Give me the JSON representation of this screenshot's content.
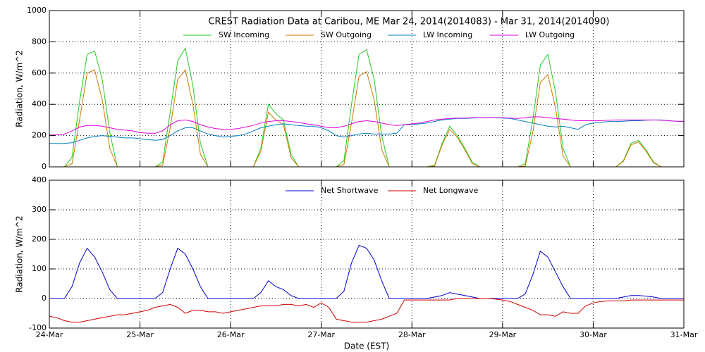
{
  "chart_data": [
    {
      "type": "line",
      "title": "CREST Radiation Data at Caribou, ME   Mar 24, 2014(2014083) - Mar 31, 2014(2014090)",
      "ylabel": "Radiation, W/m^2",
      "x": [
        0,
        2,
        4,
        6,
        8,
        10,
        12,
        14,
        16,
        18,
        20,
        22,
        24,
        26,
        28,
        30,
        32,
        34,
        36,
        38,
        40,
        42,
        44,
        46,
        48,
        50,
        52,
        54,
        56,
        58,
        60,
        62,
        64,
        66,
        68,
        70,
        72,
        74,
        76,
        78,
        80,
        82,
        84,
        86,
        88,
        90,
        92,
        94,
        96,
        98,
        100,
        102,
        104,
        106,
        108,
        110,
        112,
        114,
        116,
        118,
        120,
        122,
        124,
        126,
        128,
        130,
        132,
        134,
        136,
        138,
        140,
        142,
        144,
        146,
        148,
        150,
        152,
        154,
        156,
        158,
        160,
        162,
        164,
        166,
        168
      ],
      "xlim": [
        0,
        168
      ],
      "xticks": [
        0,
        24,
        48,
        72,
        96,
        120,
        144,
        168
      ],
      "ylim": [
        0,
        1000
      ],
      "yticks": [
        0,
        200,
        400,
        600,
        800,
        1000
      ],
      "grid": true,
      "series": [
        {
          "name": "SW Incoming",
          "color": "#22cc22",
          "values": [
            0,
            0,
            0,
            60,
            420,
            720,
            740,
            560,
            220,
            0,
            0,
            0,
            0,
            0,
            0,
            30,
            350,
            680,
            760,
            520,
            150,
            0,
            0,
            0,
            0,
            0,
            0,
            0,
            120,
            400,
            340,
            300,
            80,
            0,
            0,
            0,
            0,
            0,
            0,
            40,
            400,
            720,
            750,
            560,
            200,
            0,
            0,
            0,
            0,
            0,
            0,
            10,
            150,
            260,
            200,
            120,
            30,
            0,
            0,
            0,
            0,
            0,
            0,
            20,
            300,
            650,
            720,
            480,
            120,
            0,
            0,
            0,
            0,
            0,
            0,
            0,
            40,
            150,
            170,
            110,
            30,
            0,
            0,
            0,
            0
          ]
        },
        {
          "name": "SW Outgoing",
          "color": "#cc7a00",
          "values": [
            0,
            0,
            0,
            20,
            300,
            600,
            620,
            430,
            120,
            0,
            0,
            0,
            0,
            0,
            0,
            10,
            250,
            560,
            620,
            400,
            80,
            0,
            0,
            0,
            0,
            0,
            0,
            0,
            100,
            350,
            300,
            270,
            60,
            0,
            0,
            0,
            0,
            0,
            0,
            15,
            280,
            580,
            610,
            430,
            110,
            0,
            0,
            0,
            0,
            0,
            0,
            5,
            140,
            240,
            190,
            110,
            20,
            0,
            0,
            0,
            0,
            0,
            0,
            5,
            220,
            540,
            590,
            380,
            70,
            0,
            0,
            0,
            0,
            0,
            0,
            0,
            35,
            140,
            160,
            100,
            25,
            0,
            0,
            0,
            0
          ]
        },
        {
          "name": "LW Incoming",
          "color": "#0080c0",
          "values": [
            150,
            150,
            150,
            155,
            170,
            185,
            195,
            200,
            195,
            190,
            185,
            185,
            180,
            175,
            170,
            175,
            200,
            230,
            250,
            250,
            230,
            210,
            200,
            190,
            195,
            200,
            210,
            230,
            250,
            260,
            270,
            275,
            270,
            265,
            260,
            260,
            250,
            230,
            200,
            190,
            200,
            210,
            215,
            210,
            210,
            210,
            215,
            270,
            270,
            275,
            280,
            290,
            300,
            305,
            310,
            310,
            312,
            315,
            315,
            315,
            312,
            310,
            300,
            290,
            280,
            270,
            260,
            255,
            260,
            250,
            240,
            270,
            280,
            285,
            290,
            290,
            292,
            295,
            295,
            298,
            300,
            300,
            295,
            292,
            290
          ]
        },
        {
          "name": "LW Outgoing",
          "color": "#e000e0",
          "values": [
            210,
            205,
            210,
            230,
            255,
            265,
            265,
            260,
            250,
            240,
            235,
            230,
            220,
            215,
            215,
            230,
            270,
            295,
            300,
            290,
            270,
            255,
            245,
            240,
            240,
            245,
            255,
            265,
            280,
            290,
            295,
            295,
            290,
            285,
            275,
            270,
            260,
            250,
            250,
            260,
            275,
            290,
            295,
            290,
            280,
            270,
            265,
            270,
            275,
            280,
            290,
            300,
            305,
            310,
            312,
            312,
            315,
            315,
            315,
            315,
            315,
            312,
            310,
            315,
            320,
            320,
            315,
            310,
            305,
            300,
            295,
            295,
            295,
            295,
            298,
            300,
            300,
            300,
            300,
            300,
            300,
            298,
            295,
            292,
            292
          ]
        }
      ]
    },
    {
      "type": "line",
      "xlabel": "Date (EST)",
      "ylabel": "Radiation, W/m^2",
      "x": [
        0,
        2,
        4,
        6,
        8,
        10,
        12,
        14,
        16,
        18,
        20,
        22,
        24,
        26,
        28,
        30,
        32,
        34,
        36,
        38,
        40,
        42,
        44,
        46,
        48,
        50,
        52,
        54,
        56,
        58,
        60,
        62,
        64,
        66,
        68,
        70,
        72,
        74,
        76,
        78,
        80,
        82,
        84,
        86,
        88,
        90,
        92,
        94,
        96,
        98,
        100,
        102,
        104,
        106,
        108,
        110,
        112,
        114,
        116,
        118,
        120,
        122,
        124,
        126,
        128,
        130,
        132,
        134,
        136,
        138,
        140,
        142,
        144,
        146,
        148,
        150,
        152,
        154,
        156,
        158,
        160,
        162,
        164,
        166,
        168
      ],
      "xlim": [
        0,
        168
      ],
      "xticks": [
        {
          "value": 0,
          "label": "24-Mar"
        },
        {
          "value": 24,
          "label": "25-Mar"
        },
        {
          "value": 48,
          "label": "26-Mar"
        },
        {
          "value": 72,
          "label": "27-Mar"
        },
        {
          "value": 96,
          "label": "28-Mar"
        },
        {
          "value": 120,
          "label": "29-Mar"
        },
        {
          "value": 144,
          "label": "30-Mar"
        },
        {
          "value": 168,
          "label": "31-Mar"
        }
      ],
      "ylim": [
        -100,
        400
      ],
      "yticks": [
        -100,
        0,
        100,
        200,
        300,
        400
      ],
      "grid": true,
      "series": [
        {
          "name": "Net Shortwave",
          "color": "#0000cc",
          "values": [
            0,
            0,
            0,
            40,
            120,
            170,
            140,
            90,
            30,
            0,
            0,
            0,
            0,
            0,
            0,
            20,
            100,
            170,
            150,
            100,
            40,
            0,
            0,
            0,
            0,
            0,
            0,
            0,
            20,
            60,
            40,
            30,
            10,
            0,
            0,
            0,
            0,
            0,
            0,
            25,
            120,
            180,
            170,
            130,
            60,
            0,
            0,
            0,
            0,
            0,
            0,
            5,
            10,
            20,
            15,
            10,
            5,
            0,
            0,
            0,
            0,
            0,
            0,
            15,
            80,
            160,
            140,
            90,
            40,
            0,
            0,
            0,
            0,
            0,
            0,
            0,
            5,
            10,
            10,
            8,
            5,
            0,
            0,
            0,
            0
          ]
        },
        {
          "name": "Net Longwave",
          "color": "#cc0000",
          "values": [
            -60,
            -65,
            -75,
            -80,
            -80,
            -75,
            -70,
            -65,
            -60,
            -55,
            -55,
            -50,
            -45,
            -40,
            -30,
            -25,
            -20,
            -30,
            -50,
            -40,
            -40,
            -45,
            -45,
            -50,
            -45,
            -40,
            -35,
            -30,
            -25,
            -25,
            -25,
            -20,
            -20,
            -25,
            -20,
            -30,
            -15,
            -30,
            -70,
            -75,
            -80,
            -80,
            -80,
            -75,
            -70,
            -60,
            -50,
            -5,
            -5,
            -5,
            -5,
            -5,
            -5,
            -5,
            0,
            0,
            0,
            0,
            0,
            -2,
            -5,
            -10,
            -20,
            -30,
            -40,
            -55,
            -55,
            -60,
            -45,
            -50,
            -50,
            -25,
            -15,
            -10,
            -8,
            -8,
            -8,
            -5,
            -5,
            -5,
            -5,
            -5,
            -5,
            -5,
            -5
          ]
        }
      ]
    }
  ]
}
